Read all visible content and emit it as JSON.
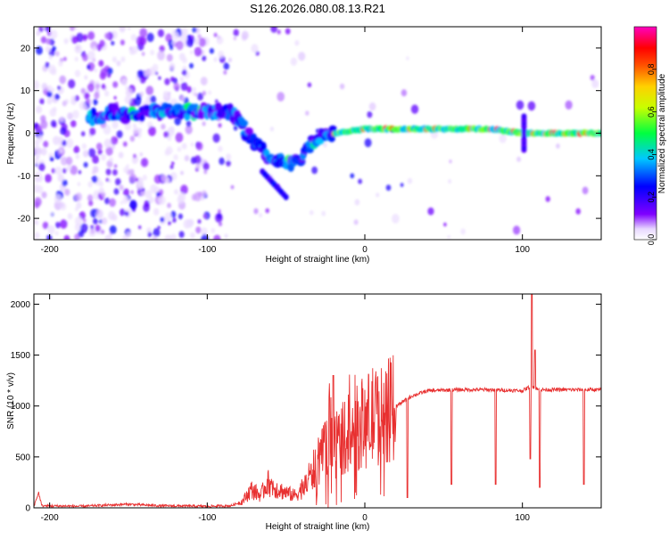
{
  "title": "S126.2026.080.08.13.R21",
  "chart_data": [
    {
      "type": "heatmap",
      "panel": "spectrogram",
      "xlabel": "Height of straight line (km)",
      "ylabel": "Frequency (Hz)",
      "xlim": [
        -210,
        150
      ],
      "ylim": [
        -25,
        25
      ],
      "xticks": [
        -200,
        -100,
        0,
        100
      ],
      "xtick_labels": [
        "-200",
        "-100",
        "0",
        "100"
      ],
      "yticks": [
        20,
        10,
        0,
        -10,
        -20
      ],
      "ytick_labels": [
        "20",
        "10",
        "0",
        "-10",
        "-20"
      ],
      "track": [
        {
          "x": -170,
          "y": 4
        },
        {
          "x": -160,
          "y": 5
        },
        {
          "x": -150,
          "y": 4
        },
        {
          "x": -140,
          "y": 5
        },
        {
          "x": -125,
          "y": 5
        },
        {
          "x": -110,
          "y": 5
        },
        {
          "x": -95,
          "y": 5
        },
        {
          "x": -85,
          "y": 5
        },
        {
          "x": -80,
          "y": 3
        },
        {
          "x": -75,
          "y": 0
        },
        {
          "x": -70,
          "y": -2
        },
        {
          "x": -65,
          "y": -4
        },
        {
          "x": -60,
          "y": -6
        },
        {
          "x": -55,
          "y": -6
        },
        {
          "x": -50,
          "y": -7
        },
        {
          "x": -45,
          "y": -7
        },
        {
          "x": -40,
          "y": -6
        },
        {
          "x": -35,
          "y": -3
        },
        {
          "x": -30,
          "y": -1
        },
        {
          "x": -25,
          "y": 0
        },
        {
          "x": -20,
          "y": 0
        },
        {
          "x": 0,
          "y": 1
        },
        {
          "x": 20,
          "y": 1
        },
        {
          "x": 40,
          "y": 1
        },
        {
          "x": 60,
          "y": 1
        },
        {
          "x": 80,
          "y": 1
        },
        {
          "x": 100,
          "y": 0
        },
        {
          "x": 120,
          "y": 0
        },
        {
          "x": 150,
          "y": 0
        }
      ],
      "colorbar": {
        "label": "Normalized spectral amplitude",
        "range": [
          0,
          1
        ],
        "ticks": [
          0.0,
          0.2,
          0.4,
          0.6,
          0.8
        ],
        "tick_labels": [
          "0.0",
          "0.2",
          "0.4",
          "0.6",
          "0.8"
        ],
        "colors": [
          "#ffffff",
          "#7f00ff",
          "#0000ff",
          "#00c8ff",
          "#00ff00",
          "#ffff00",
          "#ff8000",
          "#ff0000",
          "#ff00c0"
        ]
      }
    },
    {
      "type": "line",
      "panel": "snr",
      "xlabel": "Height of straight line (km)",
      "ylabel": "SNR (10 * v/v)",
      "xlim": [
        -210,
        150
      ],
      "ylim": [
        0,
        2100
      ],
      "xticks": [
        -200,
        -100,
        0,
        100
      ],
      "xtick_labels": [
        "-200",
        "-100",
        "0",
        "100"
      ],
      "yticks": [
        0,
        500,
        1000,
        1500,
        2000
      ],
      "ytick_labels": [
        "0",
        "500",
        "1000",
        "1500",
        "2000"
      ],
      "series": [
        {
          "name": "SNR",
          "color": "#e83030",
          "points": [
            {
              "x": -210,
              "y": 15
            },
            {
              "x": -207,
              "y": 150
            },
            {
              "x": -205,
              "y": 20
            },
            {
              "x": -180,
              "y": 15
            },
            {
              "x": -150,
              "y": 35
            },
            {
              "x": -130,
              "y": 20
            },
            {
              "x": -100,
              "y": 15
            },
            {
              "x": -85,
              "y": 20
            },
            {
              "x": -78,
              "y": 60
            },
            {
              "x": -72,
              "y": 180
            },
            {
              "x": -66,
              "y": 120
            },
            {
              "x": -62,
              "y": 250
            },
            {
              "x": -55,
              "y": 180
            },
            {
              "x": -50,
              "y": 150
            },
            {
              "x": -45,
              "y": 120
            },
            {
              "x": -40,
              "y": 180
            },
            {
              "x": -35,
              "y": 300
            },
            {
              "x": -30,
              "y": 450
            },
            {
              "x": -25,
              "y": 550
            },
            {
              "x": -22,
              "y": 850
            },
            {
              "x": -20,
              "y": 600
            },
            {
              "x": -15,
              "y": 700
            },
            {
              "x": -10,
              "y": 700
            },
            {
              "x": -5,
              "y": 780
            },
            {
              "x": 0,
              "y": 850
            },
            {
              "x": 5,
              "y": 900
            },
            {
              "x": 10,
              "y": 900
            },
            {
              "x": 15,
              "y": 950
            },
            {
              "x": 20,
              "y": 1000
            },
            {
              "x": 25,
              "y": 1050
            },
            {
              "x": 30,
              "y": 1100
            },
            {
              "x": 40,
              "y": 1150
            },
            {
              "x": 60,
              "y": 1160
            },
            {
              "x": 80,
              "y": 1160
            },
            {
              "x": 100,
              "y": 1150
            },
            {
              "x": 106,
              "y": 1200
            },
            {
              "x": 110,
              "y": 1160
            },
            {
              "x": 130,
              "y": 1160
            },
            {
              "x": 150,
              "y": 1160
            }
          ],
          "spikes_up": [
            {
              "x": -20,
              "y": 1300
            },
            {
              "x": 106,
              "y": 2100
            },
            {
              "x": 108,
              "y": 1550
            }
          ],
          "spikes_down": [
            {
              "x": 27,
              "y": 100
            },
            {
              "x": 55,
              "y": 230
            },
            {
              "x": 83,
              "y": 230
            },
            {
              "x": 105,
              "y": 480
            },
            {
              "x": 111,
              "y": 200
            },
            {
              "x": 139,
              "y": 230
            }
          ]
        }
      ]
    }
  ]
}
